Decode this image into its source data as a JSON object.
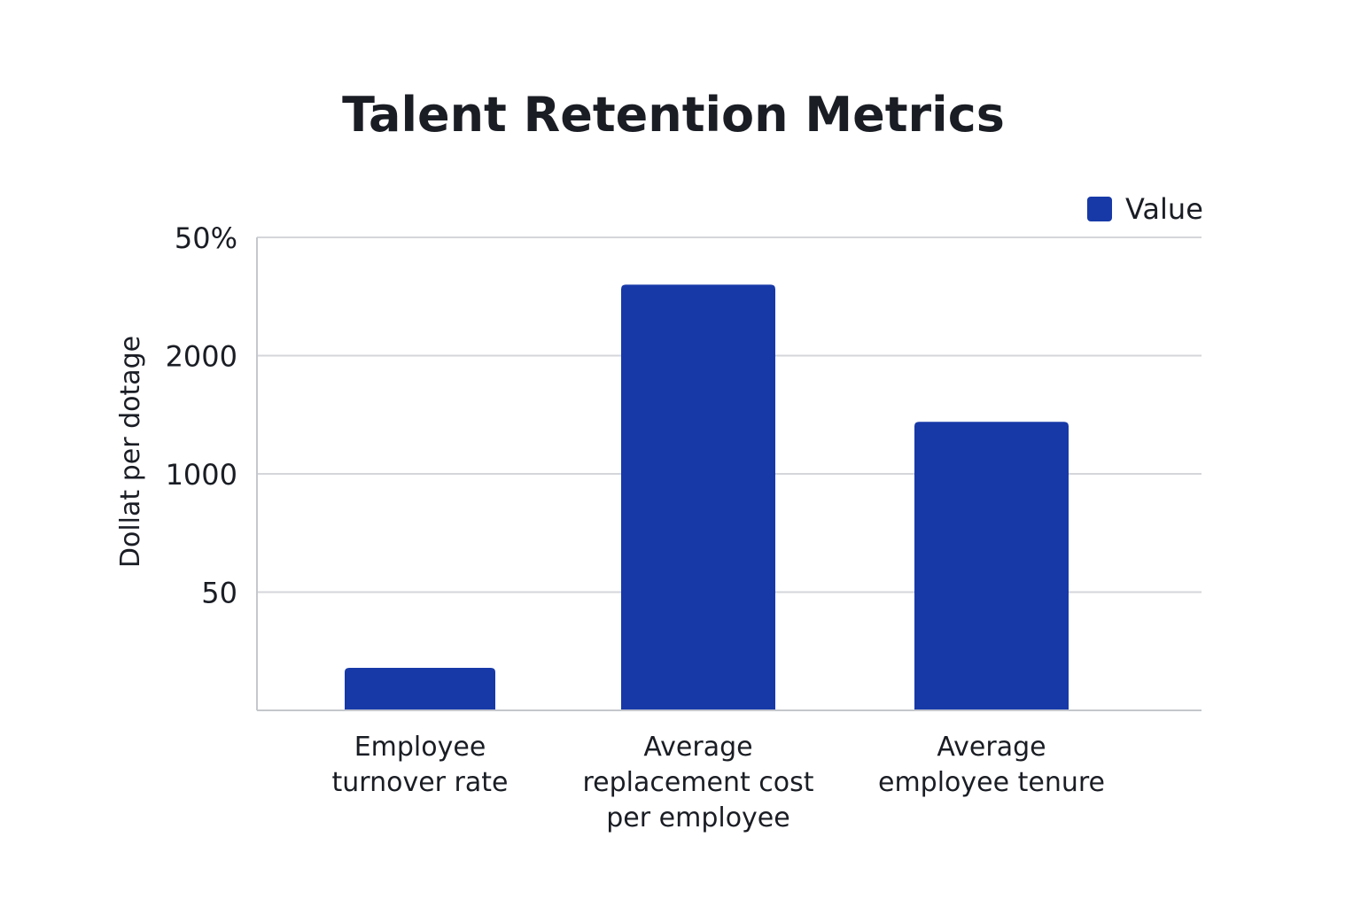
{
  "chart_data": {
    "type": "bar",
    "title": "Talent Retention Metrics",
    "ylabel": "Dollat per dotage",
    "xlabel": "",
    "y_ticks": [
      "50%",
      "2000",
      "1000",
      "50"
    ],
    "categories": [
      [
        "Employee",
        "turnover rate"
      ],
      [
        "Average",
        "replacement cost",
        "per employee"
      ],
      [
        "Average",
        "employee tenure"
      ]
    ],
    "series": [
      {
        "name": "Value",
        "color": "#1739a8",
        "values": [
          0.36,
          3.6,
          2.44
        ]
      }
    ],
    "ylim": [
      0,
      4
    ],
    "legend": "top-right",
    "grid": true
  }
}
